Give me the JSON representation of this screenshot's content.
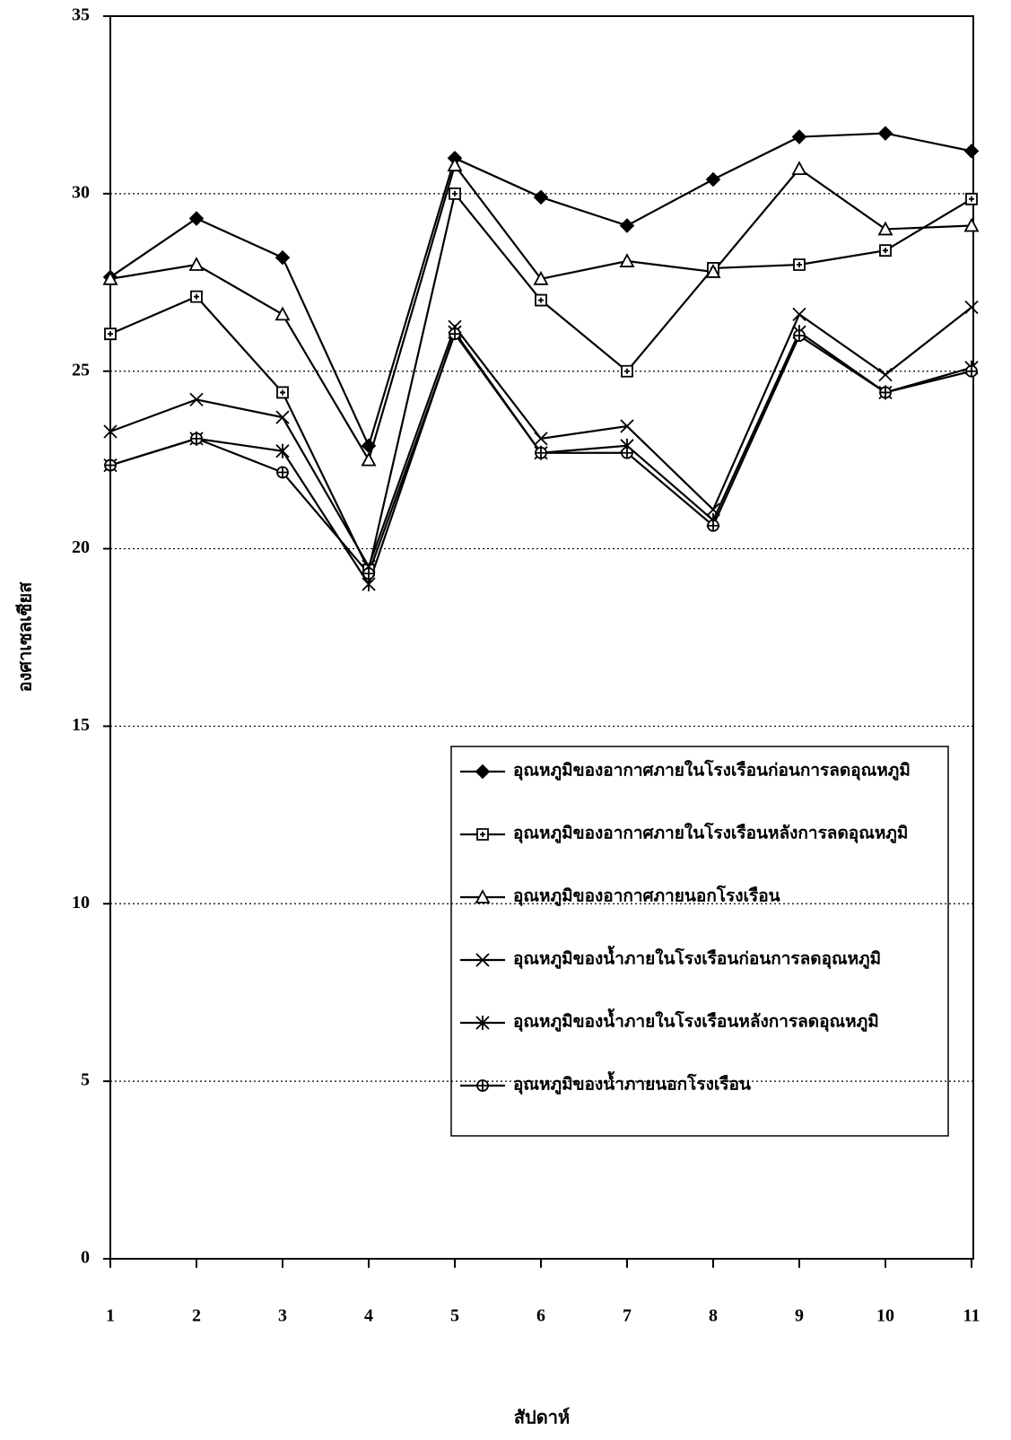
{
  "chart_data": {
    "type": "line",
    "y_label": "องศาเซลเซียส",
    "x_label": "สัปดาห์",
    "x": [
      1,
      2,
      3,
      4,
      5,
      6,
      7,
      8,
      9,
      10,
      11
    ],
    "xlim": [
      1,
      11
    ],
    "xticks": [
      1,
      2,
      3,
      4,
      5,
      6,
      7,
      8,
      9,
      10,
      11
    ],
    "ylim": [
      0,
      35
    ],
    "yticks": [
      0,
      5,
      10,
      15,
      20,
      25,
      30,
      35
    ],
    "grid": true,
    "series": [
      {
        "name": "อุณหภูมิของอากาศภายในโรงเรือนก่อนการลดอุณหภูมิ",
        "color": "#000000",
        "marker": "diamond",
        "values": [
          27.65,
          29.3,
          28.2,
          22.9,
          31.0,
          29.9,
          29.1,
          30.4,
          31.6,
          31.7,
          31.2
        ]
      },
      {
        "name": "อุณหภูมิของอากาศภายในโรงเรือนหลังการลดอุณหภูมิ",
        "color": "#000000",
        "marker": "square",
        "values": [
          26.05,
          27.1,
          24.4,
          19.4,
          30.0,
          27.0,
          25.0,
          27.9,
          28.0,
          28.4,
          29.85
        ]
      },
      {
        "name": "อุณหภูมิของอากาศภายนอกโรงเรือน",
        "color": "#000000",
        "marker": "triangle",
        "values": [
          27.6,
          28.0,
          26.6,
          22.5,
          30.8,
          27.6,
          28.1,
          27.8,
          30.7,
          29.0,
          29.1
        ]
      },
      {
        "name": "อุณหภูมิของน้ำภายในโรงเรือนก่อนการลดอุณหภูมิ",
        "color": "#000000",
        "marker": "x",
        "values": [
          23.3,
          24.2,
          23.7,
          19.5,
          26.25,
          23.1,
          23.45,
          21.1,
          26.6,
          24.9,
          26.8
        ]
      },
      {
        "name": "อุณหภูมิของน้ำภายในโรงเรือนหลังการลดอุณหภูมิ",
        "color": "#000000",
        "marker": "asterisk",
        "values": [
          22.35,
          23.1,
          22.75,
          19.0,
          26.1,
          22.7,
          22.9,
          20.8,
          26.1,
          24.4,
          25.1
        ]
      },
      {
        "name": "อุณหภูมิของน้ำภายนอกโรงเรือน",
        "color": "#000000",
        "marker": "circle",
        "values": [
          22.35,
          23.1,
          22.15,
          19.3,
          26.05,
          22.7,
          22.7,
          20.65,
          26.0,
          24.4,
          25.0
        ]
      }
    ]
  }
}
